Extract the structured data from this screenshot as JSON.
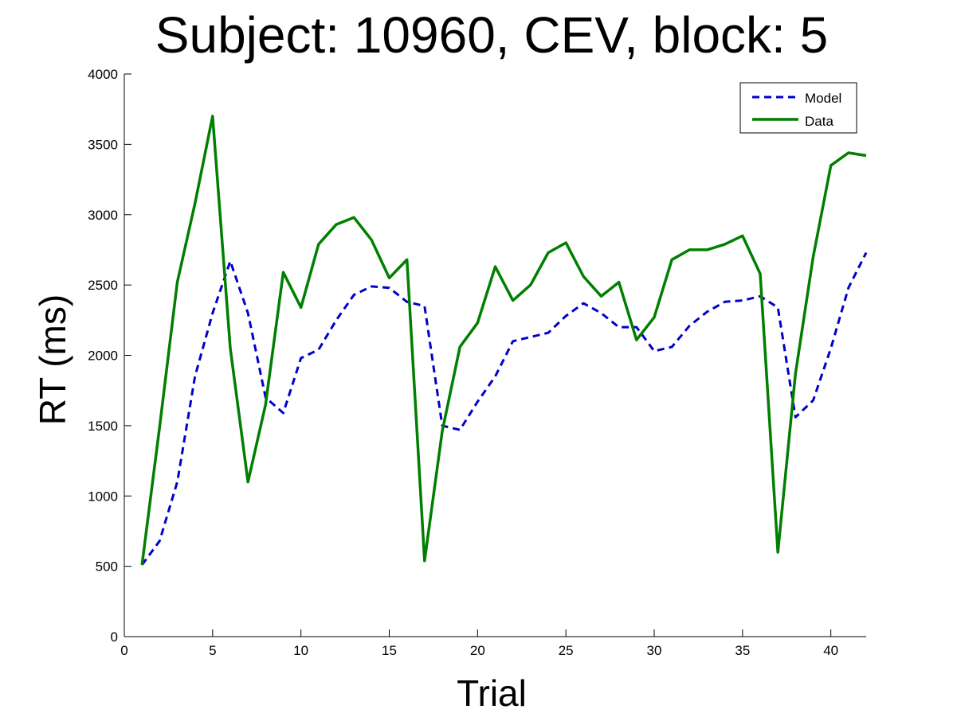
{
  "chart_data": {
    "type": "line",
    "title": "Subject: 10960, CEV, block: 5",
    "xlabel": "Trial",
    "ylabel": "RT (ms)",
    "xlim": [
      0,
      42
    ],
    "ylim": [
      0,
      4000
    ],
    "xticks": [
      0,
      5,
      10,
      15,
      20,
      25,
      30,
      35,
      40
    ],
    "yticks": [
      0,
      500,
      1000,
      1500,
      2000,
      2500,
      3000,
      3500,
      4000
    ],
    "grid": false,
    "legend_position": "top-right",
    "x": [
      1,
      2,
      3,
      4,
      5,
      6,
      7,
      8,
      9,
      10,
      11,
      12,
      13,
      14,
      15,
      16,
      17,
      18,
      19,
      20,
      21,
      22,
      23,
      24,
      25,
      26,
      27,
      28,
      29,
      30,
      31,
      32,
      33,
      34,
      35,
      36,
      37,
      38,
      39,
      40,
      41,
      42
    ],
    "series": [
      {
        "name": "Model",
        "color": "#0000cc",
        "style": "dashed",
        "values": [
          510,
          680,
          1100,
          1850,
          2300,
          2670,
          2300,
          1700,
          1590,
          1980,
          2040,
          2250,
          2430,
          2490,
          2480,
          2380,
          2350,
          1500,
          1470,
          1670,
          1850,
          2100,
          2130,
          2160,
          2280,
          2370,
          2300,
          2200,
          2200,
          2030,
          2060,
          2210,
          2310,
          2380,
          2390,
          2420,
          2340,
          1560,
          1680,
          2050,
          2480,
          2730
        ]
      },
      {
        "name": "Data",
        "color": "#007f00",
        "style": "solid",
        "values": [
          510,
          1490,
          2520,
          3080,
          3700,
          2050,
          1100,
          1650,
          2590,
          2340,
          2790,
          2930,
          2980,
          2820,
          2550,
          2680,
          540,
          1460,
          2060,
          2230,
          2630,
          2390,
          2500,
          2730,
          2800,
          2560,
          2420,
          2520,
          2110,
          2270,
          2680,
          2750,
          2750,
          2790,
          2850,
          2580,
          600,
          1870,
          2700,
          3350,
          3440,
          3420
        ]
      }
    ]
  }
}
